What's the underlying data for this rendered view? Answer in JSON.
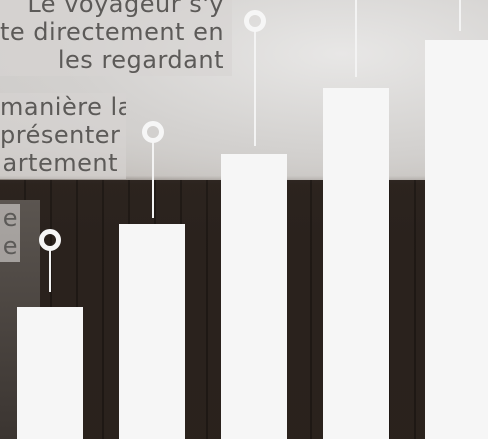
{
  "captions": {
    "c3": [
      "Le voyageur s'y",
      "te directement en",
      "les regardant"
    ],
    "c2": [
      "manière la",
      "présenter",
      "artement"
    ],
    "c1": [
      "e",
      "e"
    ]
  },
  "bars": [
    {
      "name": "bar-1",
      "level": 0.3
    },
    {
      "name": "bar-2",
      "level": 0.49
    },
    {
      "name": "bar-3",
      "level": 0.65
    },
    {
      "name": "bar-4",
      "level": 0.8
    },
    {
      "name": "bar-5",
      "level": 0.91
    }
  ],
  "colors": {
    "bar": "#f6f6f6",
    "caption_bg": "#d6d4d2",
    "caption_text": "#5c5a58"
  }
}
